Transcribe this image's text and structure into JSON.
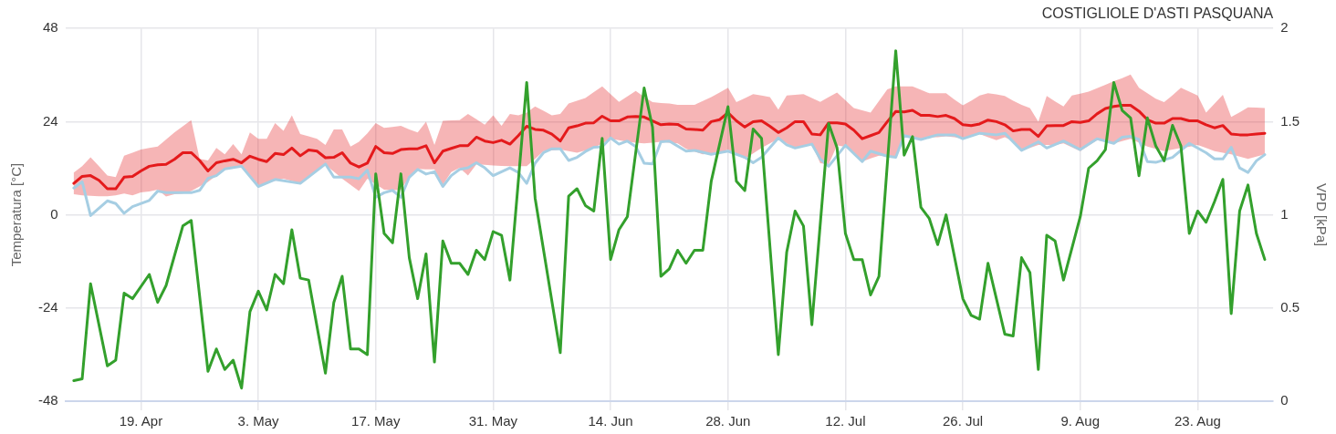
{
  "chart_data": {
    "type": "line",
    "title": "COSTIGLIOLE D'ASTI PASQUANA",
    "ylabel": "Temperatura [°C]",
    "y2label": "VPD [kPa]",
    "xlim": [
      "--04-10",
      "--09-01"
    ],
    "xticks": [
      {
        "value": "--04-19",
        "label": "19. Apr"
      },
      {
        "value": "--05-03",
        "label": "3. May"
      },
      {
        "value": "--05-17",
        "label": "17. May"
      },
      {
        "value": "--05-31",
        "label": "31. May"
      },
      {
        "value": "--06-14",
        "label": "14. Jun"
      },
      {
        "value": "--06-28",
        "label": "28. Jun"
      },
      {
        "value": "--07-12",
        "label": "12. Jul"
      },
      {
        "value": "--07-26",
        "label": "26. Jul"
      },
      {
        "value": "--08-09",
        "label": "9. Aug"
      },
      {
        "value": "--08-23",
        "label": "23. Aug"
      }
    ],
    "ylim": [
      -48,
      48
    ],
    "yticks": [
      -48,
      -24,
      0,
      24,
      48
    ],
    "y2lim": [
      0,
      2
    ],
    "y2ticks": [
      0,
      0.5,
      1,
      1.5,
      2
    ],
    "grid": true,
    "legend": false,
    "marker": "none",
    "line_style": "solid",
    "x": [
      "--04-11",
      "--04-12",
      "--04-13",
      "--04-14",
      "--04-15",
      "--04-16",
      "--04-17",
      "--04-18",
      "--04-19",
      "--04-20",
      "--04-21",
      "--04-22",
      "--04-23",
      "--04-24",
      "--04-25",
      "--04-26",
      "--04-27",
      "--04-28",
      "--04-29",
      "--04-30",
      "--05-01",
      "--05-02",
      "--05-03",
      "--05-04",
      "--05-05",
      "--05-06",
      "--05-07",
      "--05-08",
      "--05-09",
      "--05-10",
      "--05-11",
      "--05-12",
      "--05-13",
      "--05-14",
      "--05-15",
      "--05-16",
      "--05-17",
      "--05-18",
      "--05-19",
      "--05-20",
      "--05-21",
      "--05-22",
      "--05-23",
      "--05-24",
      "--05-25",
      "--05-26",
      "--05-27",
      "--05-28",
      "--05-29",
      "--05-30",
      "--05-31",
      "--06-01",
      "--06-02",
      "--06-03",
      "--06-04",
      "--06-05",
      "--06-06",
      "--06-07",
      "--06-08",
      "--06-09",
      "--06-10",
      "--06-11",
      "--06-12",
      "--06-13",
      "--06-14",
      "--06-15",
      "--06-16",
      "--06-17",
      "--06-18",
      "--06-19",
      "--06-20",
      "--06-21",
      "--06-22",
      "--06-23",
      "--06-24",
      "--06-25",
      "--06-26",
      "--06-27",
      "--06-28",
      "--06-29",
      "--06-30",
      "--07-01",
      "--07-02",
      "--07-03",
      "--07-04",
      "--07-05",
      "--07-06",
      "--07-07",
      "--07-08",
      "--07-09",
      "--07-10",
      "--07-11",
      "--07-12",
      "--07-13",
      "--07-14",
      "--07-15",
      "--07-16",
      "--07-17",
      "--07-18",
      "--07-19",
      "--07-20",
      "--07-21",
      "--07-22",
      "--07-23",
      "--07-24",
      "--07-25",
      "--07-26",
      "--07-27",
      "--07-28",
      "--07-29",
      "--07-30",
      "--07-31",
      "--08-01",
      "--08-02",
      "--08-03",
      "--08-04",
      "--08-05",
      "--08-06",
      "--08-07",
      "--08-08",
      "--08-09",
      "--08-10",
      "--08-11",
      "--08-12",
      "--08-13",
      "--08-14",
      "--08-15",
      "--08-16",
      "--08-17",
      "--08-18",
      "--08-19",
      "--08-20",
      "--08-21",
      "--08-22",
      "--08-23",
      "--08-24",
      "--08-25",
      "--08-26",
      "--08-27",
      "--08-28",
      "--08-29",
      "--08-30",
      "--08-31"
    ],
    "series": [
      {
        "color": "#a6cee3",
        "x": [
          "--04-11",
          "--04-12",
          "--04-13",
          "--04-15",
          "--04-16",
          "--04-17",
          "--04-18",
          "--04-20",
          "--04-21",
          "--04-22",
          "--04-25",
          "--04-26",
          "--04-27",
          "--04-28",
          "--04-29",
          "--05-01",
          "--05-03",
          "--05-05",
          "--05-08",
          "--05-11",
          "--05-12",
          "--05-14",
          "--05-15",
          "--05-16",
          "--05-17",
          "--05-18",
          "--05-19",
          "--05-20",
          "--05-21",
          "--05-22",
          "--05-23",
          "--05-24",
          "--05-25",
          "--05-26",
          "--05-27",
          "--05-28",
          "--05-29",
          "--05-30",
          "--05-31",
          "--06-02",
          "--06-03",
          "--06-04",
          "--06-05",
          "--06-06",
          "--06-07",
          "--06-08",
          "--06-09",
          "--06-10",
          "--06-11",
          "--06-12",
          "--06-13",
          "--06-14",
          "--06-15",
          "--06-16",
          "--06-17",
          "--06-18",
          "--06-19",
          "--06-20",
          "--06-21",
          "--06-23",
          "--06-24",
          "--06-26",
          "--06-28",
          "--06-30",
          "--07-01",
          "--07-02",
          "--07-04",
          "--07-05",
          "--07-06",
          "--07-08",
          "--07-09",
          "--07-10",
          "--07-12",
          "--07-14",
          "--07-15",
          "--07-17",
          "--07-18",
          "--07-19",
          "--07-21",
          "--07-23",
          "--07-25",
          "--07-26",
          "--07-28",
          "--07-30",
          "--07-31",
          "--08-02",
          "--08-04",
          "--08-05",
          "--08-07",
          "--08-09",
          "--08-11",
          "--08-13",
          "--08-14",
          "--08-15",
          "--08-16",
          "--08-17",
          "--08-18",
          "--08-20",
          "--08-22",
          "--08-24",
          "--08-25",
          "--08-26",
          "--08-27",
          "--08-28",
          "--08-29",
          "--08-30",
          "--08-31"
        ],
        "values": [
          6.9,
          8.5,
          -0.2,
          3.6,
          2.9,
          0.4,
          2.1,
          3.7,
          6.1,
          5.7,
          5.7,
          6.3,
          9.4,
          10.1,
          11.8,
          12.5,
          7.3,
          9.1,
          8.1,
          13.1,
          9.7,
          9.7,
          9.3,
          11.5,
          4.5,
          5.7,
          6.3,
          4.5,
          9.7,
          11.7,
          10.5,
          11.1,
          7.3,
          10.1,
          11.7,
          12.1,
          13.4,
          12.1,
          10.1,
          12.1,
          10.9,
          8.1,
          13.3,
          16.0,
          17.0,
          17.0,
          14.0,
          14.8,
          16.3,
          17.4,
          17.5,
          19.8,
          18.2,
          19.0,
          17.6,
          13.3,
          13.1,
          18.8,
          19.0,
          16.4,
          16.6,
          15.6,
          16.4,
          14.8,
          13.4,
          14.8,
          19.8,
          18.0,
          17.2,
          18.2,
          14.4,
          12.5,
          17.9,
          13.7,
          16.4,
          15.1,
          14.8,
          20.4,
          19.4,
          20.6,
          20.6,
          19.6,
          21.0,
          20.6,
          21.0,
          16.6,
          18.8,
          17.2,
          19.0,
          16.8,
          19.6,
          18.4,
          20.0,
          20.2,
          19.4,
          13.7,
          13.5,
          14.8,
          18.4,
          16.0,
          14.4,
          14.4,
          17.4,
          12.1,
          10.9,
          13.9,
          15.5
        ]
      },
      {
        "color": "#e41a1c",
        "values": [
          8.1,
          9.9,
          10.1,
          8.9,
          6.7,
          6.7,
          9.7,
          9.9,
          11.3,
          12.5,
          12.9,
          13.0,
          14.3,
          16.0,
          16.0,
          14.0,
          11.3,
          13.4,
          13.9,
          14.3,
          13.4,
          15.1,
          14.3,
          13.7,
          15.8,
          15.5,
          17.2,
          15.2,
          16.7,
          16.4,
          14.7,
          14.8,
          16.0,
          13.3,
          12.3,
          13.3,
          17.6,
          16.0,
          15.8,
          16.8,
          17.0,
          17.0,
          17.8,
          13.4,
          16.4,
          17.1,
          17.8,
          17.8,
          20.0,
          19.0,
          18.6,
          19.2,
          18.2,
          20.4,
          22.8,
          22.0,
          21.8,
          20.8,
          19.0,
          22.4,
          22.9,
          23.6,
          23.7,
          25.4,
          24.2,
          24.2,
          25.2,
          25.3,
          25.2,
          24.2,
          23.2,
          23.4,
          23.3,
          22.1,
          22.0,
          21.8,
          24.0,
          24.5,
          26.3,
          24.2,
          22.6,
          24.0,
          24.2,
          22.8,
          21.2,
          22.4,
          24.0,
          24.0,
          20.8,
          20.6,
          23.7,
          23.7,
          23.4,
          21.8,
          19.6,
          20.4,
          21.2,
          24.0,
          26.6,
          26.5,
          26.9,
          25.6,
          25.6,
          25.3,
          25.6,
          24.8,
          23.2,
          23.0,
          23.4,
          24.4,
          24.0,
          23.2,
          21.6,
          22.0,
          22.0,
          20.2,
          22.9,
          23.0,
          23.0,
          24.0,
          23.8,
          24.2,
          26.0,
          27.4,
          27.9,
          28.2,
          28.2,
          26.7,
          24.5,
          23.6,
          23.6,
          24.8,
          24.8,
          24.2,
          24.2,
          23.2,
          22.4,
          23.0,
          20.8,
          20.6,
          20.6,
          20.8,
          21.0
        ],
        "upper": [
          10.9,
          12.5,
          14.8,
          12.5,
          10.1,
          9.7,
          15.2,
          16.0,
          16.8,
          17.2,
          17.6,
          19.4,
          21.2,
          22.8,
          24.4,
          14.4,
          14.0,
          17.2,
          15.6,
          18.2,
          15.6,
          21.2,
          19.6,
          19.6,
          23.6,
          21.6,
          25.6,
          20.8,
          20.2,
          19.6,
          18.0,
          22.0,
          22.0,
          17.6,
          18.8,
          21.0,
          23.6,
          22.4,
          22.6,
          22.9,
          22.0,
          21.2,
          24.0,
          18.0,
          24.2,
          24.3,
          24.4,
          26.0,
          24.6,
          23.2,
          25.6,
          22.9,
          26.0,
          25.6,
          26.3,
          27.9,
          26.8,
          25.6,
          26.0,
          28.7,
          29.4,
          30.1,
          31.6,
          33.1,
          31.1,
          29.1,
          30.5,
          31.9,
          30.4,
          29.0,
          28.8,
          28.7,
          28.3,
          28.3,
          28.3,
          29.3,
          30.3,
          31.5,
          32.7,
          29.0,
          30.0,
          31.1,
          30.7,
          30.3,
          27.1,
          30.7,
          30.9,
          31.1,
          30.1,
          29.1,
          30.3,
          31.5,
          29.5,
          27.5,
          26.9,
          26.3,
          29.3,
          32.3,
          33.1,
          33.1,
          33.1,
          32.2,
          31.3,
          31.3,
          31.3,
          29.7,
          28.2,
          29.4,
          30.7,
          31.3,
          31.0,
          30.6,
          29.4,
          28.3,
          27.5,
          24.0,
          30.6,
          29.2,
          27.9,
          30.7,
          31.2,
          31.7,
          32.6,
          33.5,
          34.4,
          35.2,
          36.1,
          32.7,
          31.3,
          29.9,
          29.0,
          30.8,
          32.7,
          31.7,
          30.7,
          26.3,
          28.6,
          30.9,
          25.2,
          26.4,
          27.7,
          27.6,
          27.5
        ],
        "lower": [
          5.3,
          5.0,
          4.9,
          4.8,
          4.8,
          5.0,
          5.5,
          5.0,
          5.8,
          6.0,
          6.5,
          4.7,
          5.3,
          5.5,
          6.1,
          7.3,
          8.5,
          10.1,
          11.7,
          12.1,
          12.5,
          9.9,
          7.3,
          8.3,
          8.8,
          9.3,
          8.7,
          8.1,
          9.5,
          11.2,
          12.9,
          11.1,
          9.3,
          7.7,
          6.1,
          9.3,
          7.9,
          6.5,
          6.3,
          6.5,
          9.7,
          11.8,
          11.7,
          11.7,
          7.7,
          11.0,
          12.1,
          10.1,
          13.0,
          12.9,
          12.7,
          12.6,
          12.5,
          12.5,
          12.5,
          14.4,
          16.4,
          16.6,
          16.8,
          16.4,
          16.0,
          16.6,
          17.2,
          18.4,
          19.6,
          19.2,
          18.8,
          18.6,
          18.4,
          18.6,
          18.8,
          18.6,
          18.4,
          17.0,
          16.3,
          15.6,
          15.8,
          16.0,
          16.8,
          15.6,
          14.4,
          15.8,
          17.2,
          18.4,
          19.6,
          18.4,
          17.2,
          17.7,
          18.2,
          13.3,
          13.0,
          17.9,
          17.5,
          15.6,
          13.7,
          14.5,
          15.2,
          15.0,
          14.8,
          20.0,
          19.8,
          19.6,
          20.0,
          20.0,
          20.2,
          20.0,
          19.6,
          20.2,
          20.8,
          20.0,
          19.2,
          20.0,
          19.0,
          16.4,
          17.2,
          18.0,
          18.0,
          18.0,
          18.4,
          17.4,
          16.4,
          17.8,
          19.2,
          18.8,
          18.4,
          19.0,
          19.6,
          18.6,
          17.6,
          17.0,
          16.4,
          16.8,
          17.2,
          17.5,
          18.0,
          17.2,
          16.4,
          16.0,
          15.6,
          15.0,
          14.4,
          15.0,
          15.6
        ]
      },
      {
        "color": "#33a02c",
        "axis": "y2",
        "x": [
          "--04-11",
          "--04-12",
          "--04-13",
          "--04-15",
          "--04-16",
          "--04-17",
          "--04-18",
          "--04-20",
          "--04-21",
          "--04-22",
          "--04-24",
          "--04-25",
          "--04-27",
          "--04-28",
          "--04-29",
          "--04-30",
          "--05-01",
          "--05-02",
          "--05-03",
          "--05-04",
          "--05-05",
          "--05-06",
          "--05-07",
          "--05-08",
          "--05-09",
          "--05-11",
          "--05-12",
          "--05-13",
          "--05-14",
          "--05-15",
          "--05-16",
          "--05-17",
          "--05-18",
          "--05-19",
          "--05-20",
          "--05-21",
          "--05-22",
          "--05-23",
          "--05-24",
          "--05-25",
          "--05-26",
          "--05-27",
          "--05-28",
          "--05-29",
          "--05-30",
          "--05-31",
          "--06-01",
          "--06-02",
          "--06-04",
          "--06-05",
          "--06-08",
          "--06-09",
          "--06-10",
          "--06-11",
          "--06-12",
          "--06-13",
          "--06-14",
          "--06-15",
          "--06-16",
          "--06-18",
          "--06-19",
          "--06-20",
          "--06-21",
          "--06-22",
          "--06-23",
          "--06-24",
          "--06-25",
          "--06-26",
          "--06-28",
          "--06-29",
          "--06-30",
          "--07-01",
          "--07-02",
          "--07-04",
          "--07-05",
          "--07-06",
          "--07-07",
          "--07-08",
          "--07-10",
          "--07-11",
          "--07-12",
          "--07-13",
          "--07-14",
          "--07-15",
          "--07-16",
          "--07-18",
          "--07-19",
          "--07-20",
          "--07-21",
          "--07-22",
          "--07-23",
          "--07-24",
          "--07-26",
          "--07-27",
          "--07-28",
          "--07-29",
          "--07-31",
          "--08-01",
          "--08-02",
          "--08-03",
          "--08-04",
          "--08-05",
          "--08-06",
          "--08-07",
          "--08-09",
          "--08-10",
          "--08-11",
          "--08-12",
          "--08-13",
          "--08-14",
          "--08-15",
          "--08-16",
          "--08-17",
          "--08-18",
          "--08-19",
          "--08-20",
          "--08-21",
          "--08-22",
          "--08-23",
          "--08-24",
          "--08-25",
          "--08-26",
          "--08-27",
          "--08-28",
          "--08-29",
          "--08-30",
          "--08-31"
        ],
        "values": [
          0.11,
          0.12,
          0.63,
          0.19,
          0.22,
          0.58,
          0.55,
          0.68,
          0.53,
          0.62,
          0.94,
          0.97,
          0.16,
          0.28,
          0.17,
          0.22,
          0.07,
          0.48,
          0.59,
          0.49,
          0.68,
          0.63,
          0.92,
          0.66,
          0.65,
          0.15,
          0.53,
          0.67,
          0.28,
          0.28,
          0.25,
          1.22,
          0.9,
          0.85,
          1.22,
          0.77,
          0.55,
          0.79,
          0.21,
          0.86,
          0.74,
          0.74,
          0.68,
          0.81,
          0.76,
          0.91,
          0.89,
          0.65,
          1.71,
          1.09,
          0.26,
          1.1,
          1.14,
          1.05,
          1.02,
          1.41,
          0.76,
          0.92,
          0.99,
          1.68,
          1.47,
          0.67,
          0.71,
          0.81,
          0.74,
          0.81,
          0.81,
          1.18,
          1.58,
          1.18,
          1.13,
          1.46,
          1.41,
          0.25,
          0.8,
          1.02,
          0.94,
          0.41,
          1.49,
          1.36,
          0.9,
          0.76,
          0.76,
          0.57,
          0.67,
          1.88,
          1.32,
          1.42,
          1.04,
          0.98,
          0.84,
          1.0,
          0.55,
          0.46,
          0.44,
          0.74,
          0.36,
          0.35,
          0.77,
          0.69,
          0.17,
          0.89,
          0.86,
          0.65,
          0.99,
          1.25,
          1.29,
          1.35,
          1.71,
          1.56,
          1.52,
          1.21,
          1.52,
          1.37,
          1.29,
          1.48,
          1.37,
          0.9,
          1.02,
          0.96,
          1.07,
          1.19,
          0.47,
          1.02,
          1.16,
          0.9,
          0.76
        ]
      }
    ]
  }
}
